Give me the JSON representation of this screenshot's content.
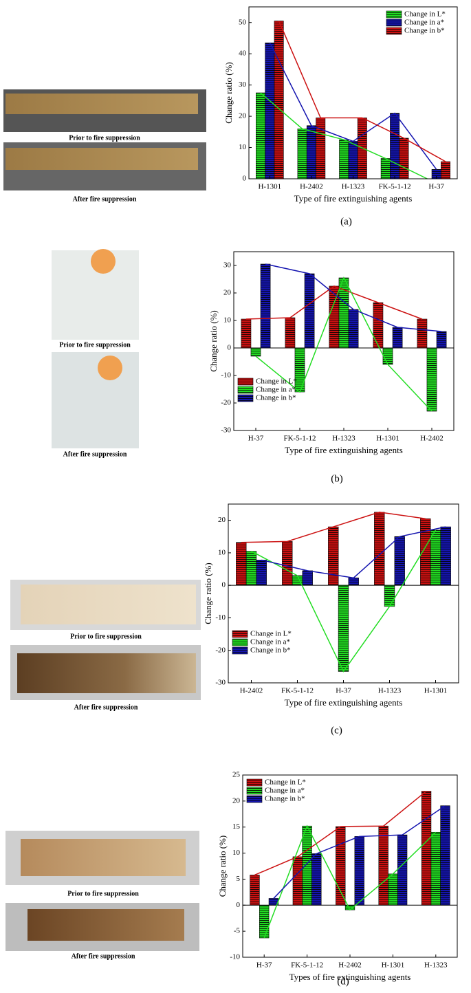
{
  "chart_data": [
    {
      "type": "bar",
      "panel_label": "(a)",
      "photo_captions": [
        "Prior to fire suppression",
        "After fire suppression"
      ],
      "xlabel": "Type of fire extinguishing agents",
      "ylabel": "Change ratio (%)",
      "categories": [
        "H-1301",
        "H-2402",
        "H-1323",
        "FK-5-1-12",
        "H-37"
      ],
      "series": [
        {
          "name": "Change in L*",
          "color": "#22dd22",
          "values": [
            27.5,
            16,
            12.5,
            6.5,
            0
          ]
        },
        {
          "name": "Change in a*",
          "color": "#1515b0",
          "values": [
            43.5,
            17,
            12,
            21,
            3
          ]
        },
        {
          "name": "Change in b*",
          "color": "#cc1111",
          "values": [
            50.5,
            19.5,
            19.5,
            13,
            5.5
          ]
        }
      ],
      "ylim": [
        0,
        55
      ],
      "yticks": [
        0,
        10,
        20,
        30,
        40,
        50
      ],
      "legend": "upper-right",
      "connect_lines": true
    },
    {
      "type": "bar",
      "panel_label": "(b)",
      "photo_captions": [
        "Prior to fire suppression",
        "After fire suppression"
      ],
      "xlabel": "Type of fire extinguishing agents",
      "ylabel": "Change ratio  (%)",
      "categories": [
        "H-37",
        "FK-5-1-12",
        "H-1323",
        "H-1301",
        "H-2402"
      ],
      "series": [
        {
          "name": "Change in L*",
          "color": "#cc1111",
          "values": [
            10.5,
            11,
            22.5,
            16.5,
            10.5
          ]
        },
        {
          "name": "Change in a*",
          "color": "#22dd22",
          "values": [
            -3,
            -16,
            25.5,
            -6,
            -23
          ]
        },
        {
          "name": "Change in b*",
          "color": "#1515b0",
          "values": [
            30.5,
            27,
            14,
            7.5,
            6
          ]
        }
      ],
      "ylim": [
        -30,
        35
      ],
      "yticks": [
        -30,
        -20,
        -10,
        0,
        10,
        20,
        30
      ],
      "legend": "lower-left",
      "connect_lines": true
    },
    {
      "type": "bar",
      "panel_label": "(c)",
      "photo_captions": [
        "Prior to fire suppression",
        "After fire suppression"
      ],
      "xlabel": "Type of fire extinguishing agents",
      "ylabel": "Change ratio (%)",
      "categories": [
        "H-2402",
        "FK-5-1-12",
        "H-37",
        "H-1323",
        "H-1301"
      ],
      "series": [
        {
          "name": "Change in L*",
          "color": "#cc1111",
          "values": [
            13.2,
            13.5,
            18,
            22.5,
            20.5
          ]
        },
        {
          "name": "Change in a*",
          "color": "#22dd22",
          "values": [
            10.5,
            3,
            -26.5,
            -6.5,
            17
          ]
        },
        {
          "name": "Change in b*",
          "color": "#1515b0",
          "values": [
            7.8,
            4.5,
            2.3,
            15,
            18
          ]
        }
      ],
      "ylim": [
        -30,
        25
      ],
      "yticks": [
        -30,
        -20,
        -10,
        0,
        10,
        20
      ],
      "legend": "lower-left",
      "connect_lines": true
    },
    {
      "type": "bar",
      "panel_label": "(d)",
      "photo_captions": [
        "Prior to fire suppression",
        "After fire suppression"
      ],
      "xlabel": "Types of fire extinguishing agents",
      "ylabel": "Change ratio (%)",
      "categories": [
        "H-37",
        "FK-5-1-12",
        "H-2402",
        "H-1301",
        "H-1323"
      ],
      "series": [
        {
          "name": "Change in L*",
          "color": "#cc1111",
          "values": [
            5.8,
            9.3,
            15.1,
            15.2,
            21.9
          ]
        },
        {
          "name": "Change in a*",
          "color": "#22dd22",
          "values": [
            -6.3,
            15.2,
            -0.9,
            6,
            14
          ]
        },
        {
          "name": "Change in b*",
          "color": "#1515b0",
          "values": [
            1.3,
            9.9,
            13.2,
            13.5,
            19.1
          ]
        }
      ],
      "ylim": [
        -10,
        25
      ],
      "yticks": [
        -10,
        -5,
        0,
        5,
        10,
        15,
        20,
        25
      ],
      "legend": "upper-left",
      "connect_lines": true
    }
  ]
}
